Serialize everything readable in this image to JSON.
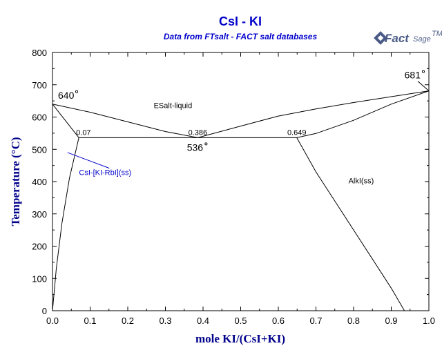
{
  "header": {
    "title": "CsI - KI",
    "subtitle": "Data from FTsalt - FACT salt databases"
  },
  "logo": {
    "brand": "Fact",
    "brand_suffix": "Sage",
    "trademark": "TM",
    "color": "#4a5a86"
  },
  "chart_data": {
    "type": "line",
    "xlabel": "mole KI/(CsI+KI)",
    "ylabel": "Temperature (°C)",
    "xlim": [
      0,
      1
    ],
    "ylim": [
      0,
      800
    ],
    "x_ticks": [
      "0.0",
      "0.1",
      "0.2",
      "0.3",
      "0.4",
      "0.5",
      "0.6",
      "0.7",
      "0.8",
      "0.9",
      "1.0"
    ],
    "y_ticks": [
      "0",
      "100",
      "200",
      "300",
      "400",
      "500",
      "600",
      "700",
      "800"
    ],
    "grid": false,
    "series": [
      {
        "points": [
          [
            0.0,
            640
          ],
          [
            0.1,
            615
          ],
          [
            0.2,
            585
          ],
          [
            0.3,
            555
          ],
          [
            0.386,
            536
          ]
        ]
      },
      {
        "points": [
          [
            0.386,
            536
          ],
          [
            0.5,
            572
          ],
          [
            0.6,
            603
          ],
          [
            0.7,
            625
          ],
          [
            0.8,
            645
          ],
          [
            0.9,
            663
          ],
          [
            1.0,
            681
          ]
        ]
      },
      {
        "points": [
          [
            0.0,
            640
          ],
          [
            0.07,
            536
          ]
        ]
      },
      {
        "points": [
          [
            0.649,
            536
          ],
          [
            0.7,
            549
          ],
          [
            0.8,
            590
          ],
          [
            0.9,
            640
          ],
          [
            1.0,
            681
          ]
        ]
      },
      {
        "points": [
          [
            0.07,
            536
          ],
          [
            0.649,
            536
          ]
        ]
      },
      {
        "points": [
          [
            0.0,
            0
          ],
          [
            0.01,
            130
          ],
          [
            0.025,
            270
          ],
          [
            0.045,
            410
          ],
          [
            0.07,
            536
          ]
        ]
      },
      {
        "points": [
          [
            0.649,
            536
          ],
          [
            0.7,
            430
          ],
          [
            0.75,
            340
          ],
          [
            0.8,
            250
          ],
          [
            0.85,
            160
          ],
          [
            0.9,
            70
          ],
          [
            0.935,
            0
          ]
        ]
      }
    ],
    "annotations": [
      {
        "text": "640",
        "x": 0.0,
        "y": 640,
        "kind": "temp"
      },
      {
        "text": "681",
        "x": 1.0,
        "y": 681,
        "kind": "temp"
      },
      {
        "text": "536",
        "x": 0.386,
        "y": 536,
        "kind": "temp"
      },
      {
        "text": "0.07",
        "x": 0.07,
        "y": 536,
        "kind": "comp"
      },
      {
        "text": "0.386",
        "x": 0.386,
        "y": 536,
        "kind": "comp"
      },
      {
        "text": "0.649",
        "x": 0.649,
        "y": 536,
        "kind": "comp"
      }
    ],
    "regions": [
      {
        "text": "ESalt-liquid",
        "x": 0.32,
        "y": 628
      },
      {
        "text": "AlkI(ss)",
        "x": 0.82,
        "y": 395
      },
      {
        "text": "CsI-[KI-RbI](ss)",
        "x": 0.14,
        "y": 420,
        "color": "#0000cc",
        "pointer": [
          0.04,
          490
        ]
      }
    ],
    "colors": {
      "title": "#0000cc",
      "axis_title": "#00008b",
      "curves": "#000000"
    }
  }
}
